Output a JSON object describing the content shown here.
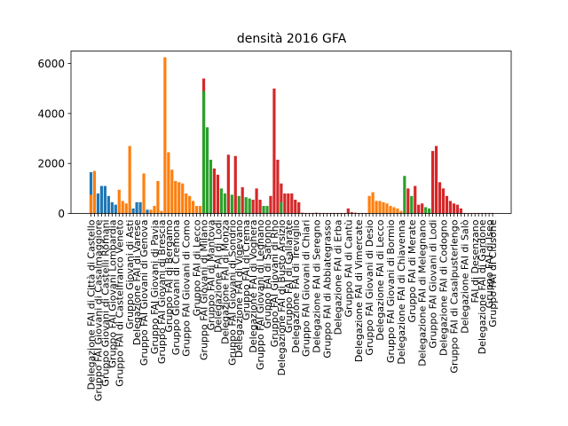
{
  "chart_data": {
    "type": "bar",
    "title": "densità  2016  GFA",
    "xlabel": "",
    "ylabel": "",
    "ylim": [
      0,
      6500
    ],
    "yticks": [
      0,
      2000,
      4000,
      6000
    ],
    "grid": false,
    "legend": "none",
    "colors": {
      "blue": "#1f77b4",
      "orange": "#ff7f0e",
      "green": "#2ca02c",
      "red": "#d62728",
      "axis": "#000000"
    },
    "bars": [
      {
        "x": 0,
        "value": 1650,
        "color": "blue"
      },
      {
        "x": 1,
        "value": 1700,
        "color": "orange"
      },
      {
        "x": 2,
        "value": 800,
        "color": "blue"
      },
      {
        "x": 3,
        "value": 1100,
        "color": "blue"
      },
      {
        "x": 4,
        "value": 1100,
        "color": "blue"
      },
      {
        "x": 5,
        "value": 700,
        "color": "blue"
      },
      {
        "x": 6,
        "value": 450,
        "color": "blue"
      },
      {
        "x": 7,
        "value": 350,
        "color": "blue"
      },
      {
        "x": 8,
        "value": 950,
        "color": "orange"
      },
      {
        "x": 9,
        "value": 500,
        "color": "orange"
      },
      {
        "x": 10,
        "value": 400,
        "color": "orange"
      },
      {
        "x": 11,
        "value": 2700,
        "color": "orange"
      },
      {
        "x": 12,
        "value": 200,
        "color": "blue"
      },
      {
        "x": 13,
        "value": 450,
        "color": "blue"
      },
      {
        "x": 14,
        "value": 450,
        "color": "blue"
      },
      {
        "x": 15,
        "value": 1600,
        "color": "orange"
      },
      {
        "x": 16,
        "value": 150,
        "color": "blue"
      },
      {
        "x": 17,
        "value": 150,
        "color": "orange"
      },
      {
        "x": 18,
        "value": 300,
        "color": "orange"
      },
      {
        "x": 19,
        "value": 1300,
        "color": "orange"
      },
      {
        "x": 20,
        "value": 100,
        "color": "orange"
      },
      {
        "x": 21,
        "value": 6250,
        "color": "orange"
      },
      {
        "x": 22,
        "value": 2450,
        "color": "orange"
      },
      {
        "x": 23,
        "value": 1750,
        "color": "orange"
      },
      {
        "x": 24,
        "value": 1300,
        "color": "orange"
      },
      {
        "x": 25,
        "value": 1250,
        "color": "orange"
      },
      {
        "x": 26,
        "value": 1200,
        "color": "orange"
      },
      {
        "x": 27,
        "value": 800,
        "color": "orange"
      },
      {
        "x": 28,
        "value": 700,
        "color": "orange"
      },
      {
        "x": 29,
        "value": 500,
        "color": "orange"
      },
      {
        "x": 30,
        "value": 300,
        "color": "orange"
      },
      {
        "x": 31,
        "value": 300,
        "color": "orange"
      },
      {
        "x": 32,
        "value": 5400,
        "color": "red"
      },
      {
        "x": 33,
        "value": 3450,
        "color": "green"
      },
      {
        "x": 34,
        "value": 2150,
        "color": "green"
      },
      {
        "x": 35,
        "value": 1800,
        "color": "red"
      },
      {
        "x": 36,
        "value": 1550,
        "color": "red"
      },
      {
        "x": 37,
        "value": 1000,
        "color": "green"
      },
      {
        "x": 38,
        "value": 800,
        "color": "green"
      },
      {
        "x": 39,
        "value": 2350,
        "color": "red"
      },
      {
        "x": 40,
        "value": 750,
        "color": "green"
      },
      {
        "x": 41,
        "value": 2300,
        "color": "red"
      },
      {
        "x": 42,
        "value": 700,
        "color": "green"
      },
      {
        "x": 43,
        "value": 1050,
        "color": "red"
      },
      {
        "x": 44,
        "value": 650,
        "color": "green"
      },
      {
        "x": 45,
        "value": 600,
        "color": "green"
      },
      {
        "x": 46,
        "value": 550,
        "color": "red"
      },
      {
        "x": 47,
        "value": 1000,
        "color": "red"
      },
      {
        "x": 48,
        "value": 550,
        "color": "red"
      },
      {
        "x": 49,
        "value": 300,
        "color": "green"
      },
      {
        "x": 50,
        "value": 300,
        "color": "green"
      },
      {
        "x": 51,
        "value": 700,
        "color": "red"
      },
      {
        "x": 52,
        "value": 5000,
        "color": "red"
      },
      {
        "x": 53,
        "value": 2150,
        "color": "red"
      },
      {
        "x": 54,
        "value": 1200,
        "color": "red"
      },
      {
        "x": 55,
        "value": 800,
        "color": "red"
      },
      {
        "x": 56,
        "value": 800,
        "color": "red"
      },
      {
        "x": 57,
        "value": 800,
        "color": "red"
      },
      {
        "x": 58,
        "value": 550,
        "color": "red"
      },
      {
        "x": 59,
        "value": 450,
        "color": "red"
      },
      {
        "x": 60,
        "value": 30,
        "color": "red"
      },
      {
        "x": 61,
        "value": 20,
        "color": "red"
      },
      {
        "x": 62,
        "value": 20,
        "color": "red"
      },
      {
        "x": 63,
        "value": 20,
        "color": "red"
      },
      {
        "x": 64,
        "value": 30,
        "color": "red"
      },
      {
        "x": 65,
        "value": 20,
        "color": "red"
      },
      {
        "x": 66,
        "value": 20,
        "color": "red"
      },
      {
        "x": 67,
        "value": 20,
        "color": "red"
      },
      {
        "x": 68,
        "value": 20,
        "color": "red"
      },
      {
        "x": 69,
        "value": 20,
        "color": "red"
      },
      {
        "x": 70,
        "value": 20,
        "color": "red"
      },
      {
        "x": 71,
        "value": 20,
        "color": "red"
      },
      {
        "x": 72,
        "value": 20,
        "color": "red"
      },
      {
        "x": 73,
        "value": 200,
        "color": "red"
      },
      {
        "x": 74,
        "value": 50,
        "color": "red"
      },
      {
        "x": 75,
        "value": 30,
        "color": "red"
      },
      {
        "x": 76,
        "value": 20,
        "color": "red"
      },
      {
        "x": 77,
        "value": 20,
        "color": "red"
      },
      {
        "x": 78,
        "value": 20,
        "color": "red"
      },
      {
        "x": 79,
        "value": 700,
        "color": "orange"
      },
      {
        "x": 80,
        "value": 850,
        "color": "orange"
      },
      {
        "x": 81,
        "value": 500,
        "color": "orange"
      },
      {
        "x": 82,
        "value": 500,
        "color": "orange"
      },
      {
        "x": 83,
        "value": 450,
        "color": "orange"
      },
      {
        "x": 84,
        "value": 400,
        "color": "orange"
      },
      {
        "x": 85,
        "value": 300,
        "color": "orange"
      },
      {
        "x": 86,
        "value": 250,
        "color": "orange"
      },
      {
        "x": 87,
        "value": 200,
        "color": "orange"
      },
      {
        "x": 88,
        "value": 100,
        "color": "orange"
      },
      {
        "x": 89,
        "value": 1500,
        "color": "green"
      },
      {
        "x": 90,
        "value": 1000,
        "color": "red"
      },
      {
        "x": 91,
        "value": 700,
        "color": "green"
      },
      {
        "x": 92,
        "value": 1100,
        "color": "red"
      },
      {
        "x": 93,
        "value": 350,
        "color": "red"
      },
      {
        "x": 94,
        "value": 400,
        "color": "red"
      },
      {
        "x": 95,
        "value": 250,
        "color": "green"
      },
      {
        "x": 96,
        "value": 200,
        "color": "green"
      },
      {
        "x": 97,
        "value": 2500,
        "color": "red"
      },
      {
        "x": 98,
        "value": 2700,
        "color": "red"
      },
      {
        "x": 99,
        "value": 1250,
        "color": "red"
      },
      {
        "x": 100,
        "value": 1000,
        "color": "red"
      },
      {
        "x": 101,
        "value": 700,
        "color": "red"
      },
      {
        "x": 102,
        "value": 500,
        "color": "red"
      },
      {
        "x": 103,
        "value": 400,
        "color": "red"
      },
      {
        "x": 104,
        "value": 350,
        "color": "red"
      },
      {
        "x": 105,
        "value": 200,
        "color": "red"
      },
      {
        "x": 106,
        "value": 20,
        "color": "red"
      },
      {
        "x": 107,
        "value": 20,
        "color": "red"
      },
      {
        "x": 108,
        "value": 20,
        "color": "red"
      },
      {
        "x": 109,
        "value": 20,
        "color": "red"
      },
      {
        "x": 110,
        "value": 20,
        "color": "red"
      },
      {
        "x": 111,
        "value": 20,
        "color": "red"
      },
      {
        "x": 112,
        "value": 20,
        "color": "red"
      },
      {
        "x": 113,
        "value": 20,
        "color": "red"
      },
      {
        "x": 114,
        "value": 20,
        "color": "red"
      }
    ],
    "overlays": [
      {
        "x": 0,
        "value": 750,
        "color": "orange"
      },
      {
        "x": 32,
        "value": 4900,
        "color": "green"
      },
      {
        "x": 54,
        "value": 450,
        "color": "green"
      }
    ],
    "category_labels": [
      {
        "x": 0,
        "text": "Delegazione FAI di Città di Castello"
      },
      {
        "x": 2,
        "text": "Gruppo FAI Giovani di Casalmaggiore"
      },
      {
        "x": 4,
        "text": "Gruppo Giovani di Castelli Romani"
      },
      {
        "x": 6,
        "text": "Gruppo FAI Giovani Lombardia"
      },
      {
        "x": 8,
        "text": "Gruppo FAI di Castelfranco Veneto"
      },
      {
        "x": 11,
        "text": "Gruppo Giovani di Asti"
      },
      {
        "x": 13,
        "text": "Delegazione FAI di Varese"
      },
      {
        "x": 15,
        "text": "Gruppo FAI Giovani di Genova"
      },
      {
        "x": 18,
        "text": "Gruppo FAI Giovani di Pavia"
      },
      {
        "x": 20,
        "text": "Gruppo FAI Giovani di Brescia"
      },
      {
        "x": 22,
        "text": "Gruppo FAI di Bergamo"
      },
      {
        "x": 24,
        "text": "Gruppo Giovani di Cremona"
      },
      {
        "x": 27,
        "text": "Gruppo FAI Giovani di Como"
      },
      {
        "x": 30,
        "text": "Gruppo FAI di Lecco"
      },
      {
        "x": 32,
        "text": "Gruppo FAI Giovani di Milano"
      },
      {
        "x": 34,
        "text": "Gruppo FAI di Mantova"
      },
      {
        "x": 36,
        "text": "Delegazione FAI di Lodi"
      },
      {
        "x": 38,
        "text": "Delegazione FAI di Monza"
      },
      {
        "x": 40,
        "text": "Gruppo FAI Giovani di Sondrio"
      },
      {
        "x": 42,
        "text": "Delegazione FAI di Vigevano"
      },
      {
        "x": 44,
        "text": "Gruppo FAI di Crema"
      },
      {
        "x": 46,
        "text": "Delegazione FAI di Voghera"
      },
      {
        "x": 48,
        "text": "Gruppo FAI Giovani di Legnano"
      },
      {
        "x": 50,
        "text": "Gruppo FAI di Saronno"
      },
      {
        "x": 52,
        "text": "Gruppo FAI Giovani di Rho"
      },
      {
        "x": 54,
        "text": "Delegazione FAI di Busto Arsizio"
      },
      {
        "x": 56,
        "text": "Gruppo FAI di Gallarate"
      },
      {
        "x": 58,
        "text": "Delegazione FAI di Treviglio"
      },
      {
        "x": 61,
        "text": "Gruppo FAI Giovani di Chiari"
      },
      {
        "x": 64,
        "text": "Delegazione FAI di Seregno"
      },
      {
        "x": 67,
        "text": "Gruppo FAI di Abbiategrasso"
      },
      {
        "x": 70,
        "text": "Delegazione FAI di Erba"
      },
      {
        "x": 73,
        "text": "Gruppo FAI di Cantù"
      },
      {
        "x": 76,
        "text": "Delegazione FAI di Vimercate"
      },
      {
        "x": 79,
        "text": "Gruppo FAI Giovani di Desio"
      },
      {
        "x": 82,
        "text": "Delegazione FAI di Lecco"
      },
      {
        "x": 85,
        "text": "Gruppo FAI Giovani di Bormio"
      },
      {
        "x": 88,
        "text": "Delegazione FAI di Chiavenna"
      },
      {
        "x": 91,
        "text": "Gruppo FAI di Merate"
      },
      {
        "x": 94,
        "text": "Delegazione FAI di Melegnano"
      },
      {
        "x": 97,
        "text": "Gruppo FAI Giovani di Lodi"
      },
      {
        "x": 100,
        "text": "Delegazione FAI di Codogno"
      },
      {
        "x": 103,
        "text": "Gruppo FAI di Casalpusterlengo"
      },
      {
        "x": 106,
        "text": "Delegazione FAI di Salò"
      },
      {
        "x": 109,
        "text": "FAI di Desenzano"
      },
      {
        "x": 111,
        "text": "Delegazione FAI di Gardone"
      },
      {
        "x": 113,
        "text": "Gruppo FAI di Iseo"
      },
      {
        "x": 114,
        "text": "Gruppo FAI di Clusone"
      }
    ]
  }
}
